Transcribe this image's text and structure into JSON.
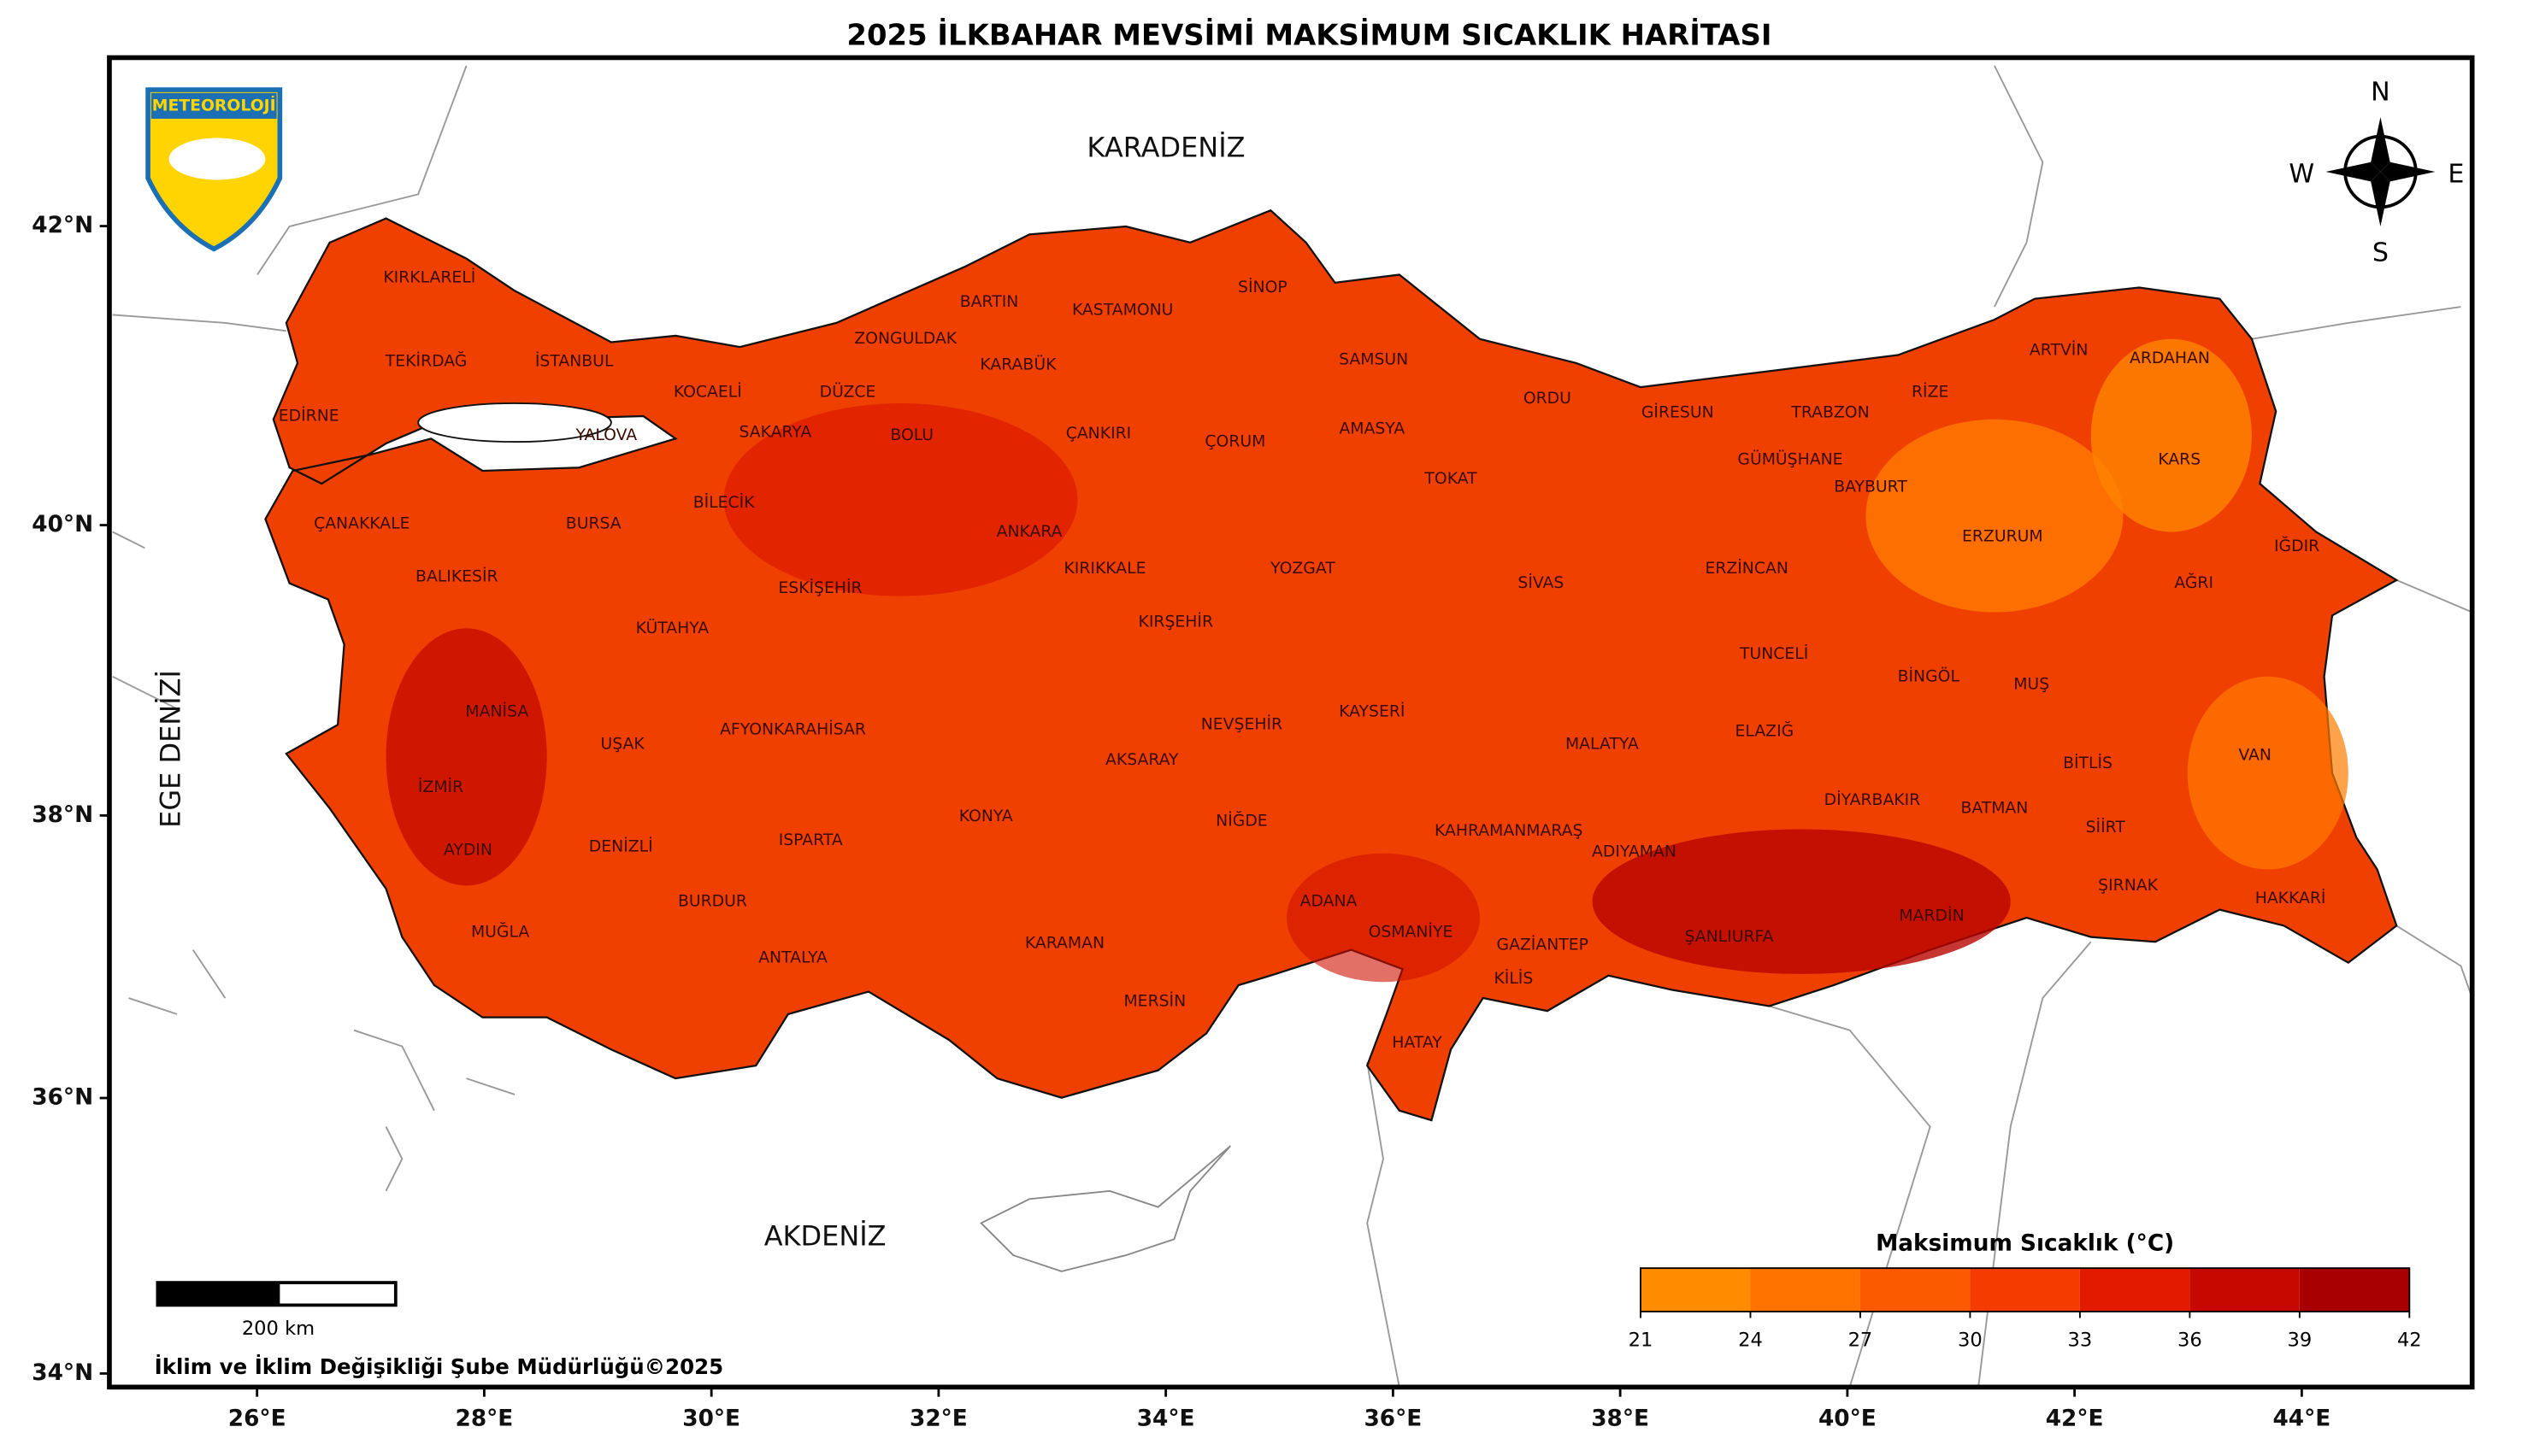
{
  "title": "2025 İLKBAHAR MEVSİMİ MAKSİMUM SICAKLIK HARİTASI",
  "logo_text": "METEOROLOJİ",
  "seas": [
    "KARADENİZ",
    "AKDENİZ",
    "EGE DENİZİ"
  ],
  "provinces": [
    "KIRKLARELİ",
    "TEKİRDAĞ",
    "İSTANBUL",
    "EDİRNE",
    "KOCAELİ",
    "DÜZCE",
    "ZONGULDAK",
    "BARTIN",
    "KASTAMONU",
    "SİNOP",
    "KARABÜK",
    "SAMSUN",
    "YALOVA",
    "SAKARYA",
    "BOLU",
    "ÇANKIRI",
    "ÇORUM",
    "AMASYA",
    "ORDU",
    "GİRESUN",
    "TRABZON",
    "RİZE",
    "ARTVİN",
    "ARDAHAN",
    "KARS",
    "GÜMÜŞHANE",
    "BAYBURT",
    "TOKAT",
    "ÇANAKKALE",
    "BURSA",
    "BİLECİK",
    "ANKARA",
    "ERZURUM",
    "IĞDIR",
    "BALIKESİR",
    "ESKİŞEHİR",
    "KIRIKKALE",
    "YOZGAT",
    "SİVAS",
    "ERZİNCAN",
    "AĞRI",
    "KÜTAHYA",
    "KIRŞEHİR",
    "TUNCELİ",
    "BİNGÖL",
    "MUŞ",
    "MANİSA",
    "KAYSERİ",
    "NEVŞEHİR",
    "ELAZIĞ",
    "UŞAK",
    "AFYONKARAHİSAR",
    "MALATYA",
    "AKSARAY",
    "BİTLİS",
    "VAN",
    "İZMİR",
    "DİYARBAKIR",
    "BATMAN",
    "KONYA",
    "NİĞDE",
    "SİİRT",
    "KAHRAMANMARAŞ",
    "AYDIN",
    "DENİZLİ",
    "ISPARTA",
    "ADIYAMAN",
    "ŞIRNAK",
    "HAKKARİ",
    "BURDUR",
    "ADANA",
    "MARDİN",
    "OSMANİYE",
    "ŞANLIURFA",
    "MUĞLA",
    "KARAMAN",
    "GAZİANTEP",
    "ANTALYA",
    "KİLİS",
    "MERSİN",
    "HATAY"
  ],
  "compass": {
    "n": "N",
    "e": "E",
    "s": "S",
    "w": "W"
  },
  "legend_title": "Maksimum Sıcaklık (°C)",
  "colorbar": {
    "ticks": [
      21,
      24,
      27,
      30,
      33,
      36,
      39,
      42
    ],
    "colors": [
      "#ff8c00",
      "#ff7300",
      "#fb5a00",
      "#f43c00",
      "#e21a00",
      "#c60800",
      "#a80000"
    ]
  },
  "scale_label": "200 km",
  "footer": "İklim ve İklim Değişikliği Şube Müdürlüğü©2025",
  "xlim": [
    24.7,
    45.5
  ],
  "ylim": [
    33.9,
    43.1
  ],
  "xticks": [
    {
      "value": 26,
      "label": "26°E"
    },
    {
      "value": 28,
      "label": "28°E"
    },
    {
      "value": 30,
      "label": "30°E"
    },
    {
      "value": 32,
      "label": "32°E"
    },
    {
      "value": 34,
      "label": "34°E"
    },
    {
      "value": 36,
      "label": "36°E"
    },
    {
      "value": 38,
      "label": "38°E"
    },
    {
      "value": 40,
      "label": "40°E"
    },
    {
      "value": 42,
      "label": "42°E"
    },
    {
      "value": 44,
      "label": "44°E"
    }
  ],
  "yticks": [
    {
      "value": 34,
      "label": "34°N"
    },
    {
      "value": 36,
      "label": "36°N"
    },
    {
      "value": 38,
      "label": "38°N"
    },
    {
      "value": 40,
      "label": "40°N"
    },
    {
      "value": 42,
      "label": "42°N"
    }
  ]
}
